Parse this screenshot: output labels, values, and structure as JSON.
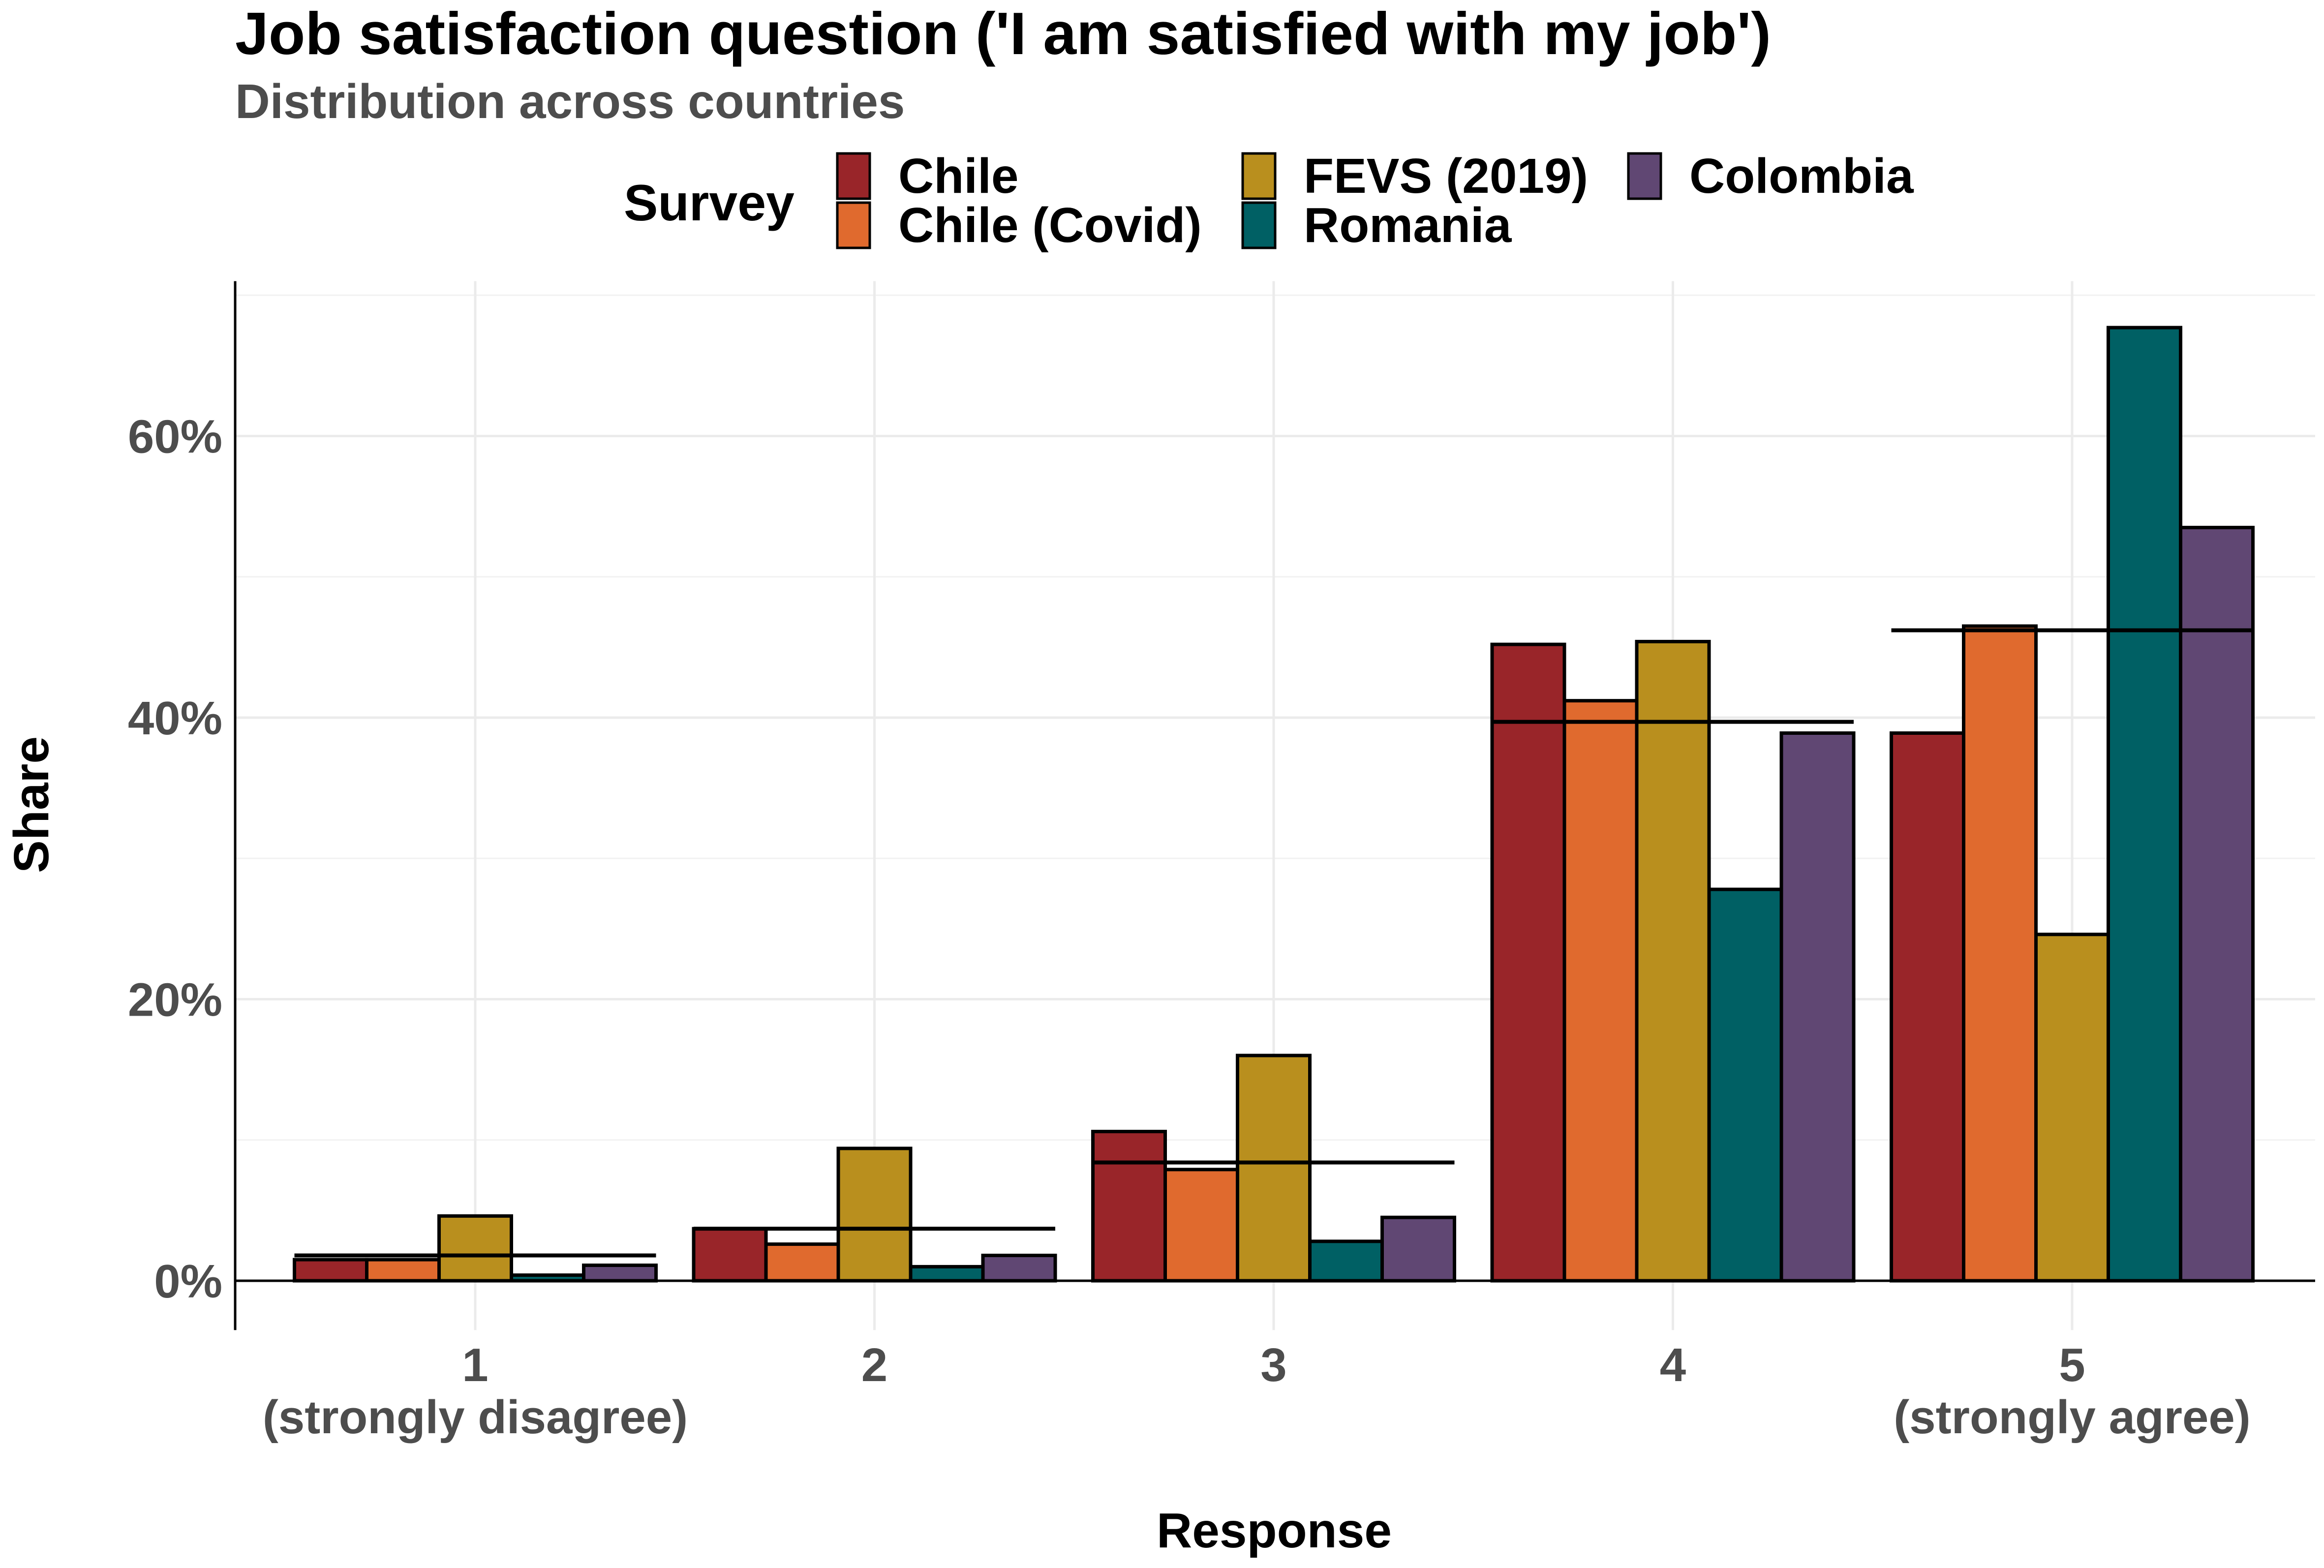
{
  "chart_data": {
    "type": "bar",
    "title": "Job satisfaction question ('I am satisfied with my job')",
    "subtitle": "Distribution across countries",
    "xlabel": "Response",
    "ylabel": "Share",
    "legend_title": "Survey",
    "legend_position": "top",
    "categories": [
      [
        "1",
        "(strongly disagree)"
      ],
      [
        "2",
        ""
      ],
      [
        "3",
        ""
      ],
      [
        "4",
        ""
      ],
      [
        "5",
        "(strongly agree)"
      ]
    ],
    "y_ticks": [
      {
        "value": 0,
        "label": "0%"
      },
      {
        "value": 20,
        "label": "20%"
      },
      {
        "value": 40,
        "label": "40%"
      },
      {
        "value": 60,
        "label": "60%"
      }
    ],
    "ylim": [
      -3.5,
      71
    ],
    "grid": true,
    "series": [
      {
        "name": "Chile",
        "color": "#992529",
        "values": [
          1.5,
          3.7,
          10.6,
          45.2,
          38.9
        ]
      },
      {
        "name": "Chile (Covid)",
        "color": "#E06A2E",
        "values": [
          1.5,
          2.6,
          7.9,
          41.2,
          46.5
        ]
      },
      {
        "name": "FEVS (2019)",
        "color": "#B98F1E",
        "values": [
          4.6,
          9.4,
          16.0,
          45.4,
          24.6
        ]
      },
      {
        "name": "Romania",
        "color": "#006064",
        "values": [
          0.4,
          1.0,
          2.8,
          27.8,
          67.7
        ]
      },
      {
        "name": "Colombia",
        "color": "#604773",
        "values": [
          1.1,
          1.8,
          4.5,
          38.9,
          53.5
        ]
      }
    ],
    "mean_lines": [
      1.8,
      3.7,
      8.4,
      39.7,
      46.2
    ]
  }
}
